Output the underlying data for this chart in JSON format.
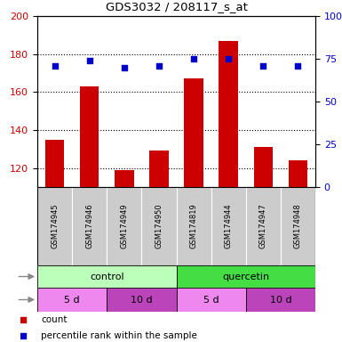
{
  "title": "GDS3032 / 208117_s_at",
  "samples": [
    "GSM174945",
    "GSM174946",
    "GSM174949",
    "GSM174950",
    "GSM174819",
    "GSM174944",
    "GSM174947",
    "GSM174948"
  ],
  "counts": [
    135,
    163,
    119,
    129,
    167,
    187,
    131,
    124
  ],
  "percentile_ranks": [
    71,
    74,
    70,
    71,
    75,
    75,
    71,
    71
  ],
  "ylim_left": [
    110,
    200
  ],
  "ylim_right": [
    0,
    100
  ],
  "yticks_left": [
    120,
    140,
    160,
    180,
    200
  ],
  "yticks_right": [
    0,
    25,
    50,
    75,
    100
  ],
  "bar_color": "#cc0000",
  "dot_color": "#0000cc",
  "agent_groups": [
    {
      "label": "control",
      "start": 0,
      "end": 4,
      "color": "#bbffbb"
    },
    {
      "label": "quercetin",
      "start": 4,
      "end": 8,
      "color": "#44dd44"
    }
  ],
  "time_groups": [
    {
      "label": "5 d",
      "start": 0,
      "end": 2,
      "color": "#ee88ee"
    },
    {
      "label": "10 d",
      "start": 2,
      "end": 4,
      "color": "#bb44bb"
    },
    {
      "label": "5 d",
      "start": 4,
      "end": 6,
      "color": "#ee88ee"
    },
    {
      "label": "10 d",
      "start": 6,
      "end": 8,
      "color": "#bb44bb"
    }
  ],
  "sample_bg_color": "#cccccc",
  "legend_count_color": "#cc0000",
  "legend_dot_color": "#0000cc",
  "fig_width": 3.85,
  "fig_height": 3.84,
  "dpi": 100
}
